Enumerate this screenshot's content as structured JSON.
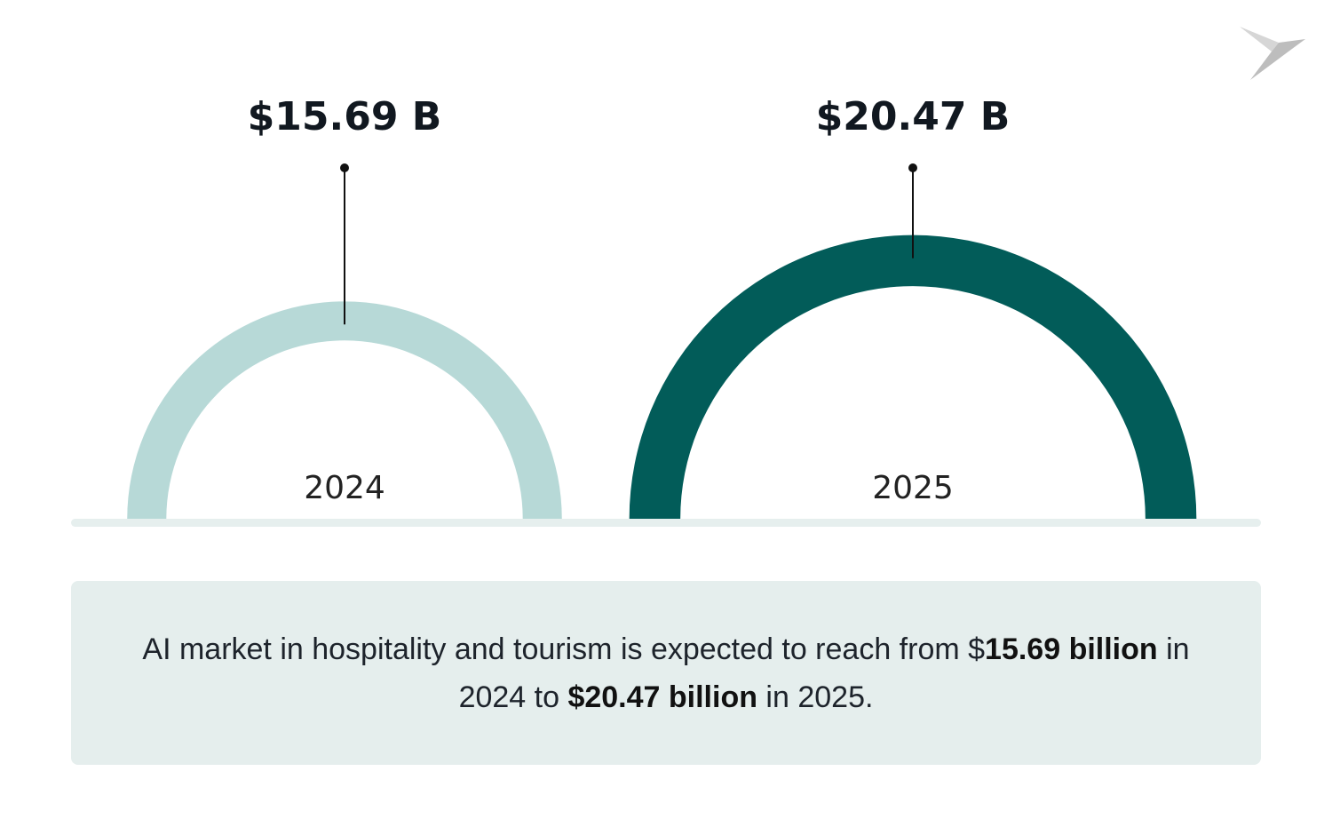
{
  "chart_data": {
    "type": "semicircle",
    "categories": [
      "2024",
      "2025"
    ],
    "values": [
      15.69,
      20.47
    ],
    "value_labels": [
      "$15.69 B",
      "$20.47 B"
    ],
    "colors": [
      "#b7d9d7",
      "#025c59"
    ]
  },
  "caption": [
    {
      "text": "AI market in hospitality and tourism is expected to reach from $",
      "bold": false
    },
    {
      "text": "15.69 billion",
      "bold": true
    },
    {
      "text": " in 2024 to ",
      "bold": false
    },
    {
      "text": "$20.47 billion",
      "bold": true
    },
    {
      "text": " in 2025.",
      "bold": false
    }
  ]
}
